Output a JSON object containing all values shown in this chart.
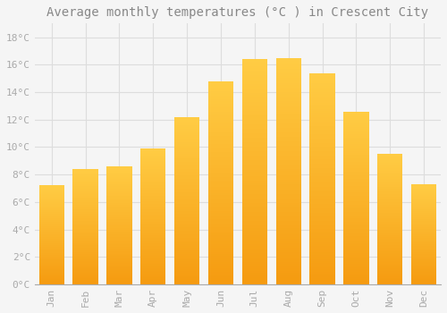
{
  "title": "Average monthly temperatures (°C ) in Crescent City",
  "months": [
    "Jan",
    "Feb",
    "Mar",
    "Apr",
    "May",
    "Jun",
    "Jul",
    "Aug",
    "Sep",
    "Oct",
    "Nov",
    "Dec"
  ],
  "values": [
    7.2,
    8.4,
    8.6,
    9.9,
    12.2,
    14.8,
    16.4,
    16.5,
    15.4,
    12.6,
    9.5,
    7.3
  ],
  "bar_color_top": "#FFCC44",
  "bar_color_bottom": "#F59B10",
  "ylim": [
    0,
    19
  ],
  "yticks": [
    0,
    2,
    4,
    6,
    8,
    10,
    12,
    14,
    16,
    18
  ],
  "background_color": "#F5F5F5",
  "plot_bg_color": "#F5F5F5",
  "grid_color": "#DDDDDD",
  "title_fontsize": 10,
  "tick_fontsize": 8,
  "tick_color": "#AAAAAA",
  "title_color": "#888888",
  "bar_width": 0.75
}
